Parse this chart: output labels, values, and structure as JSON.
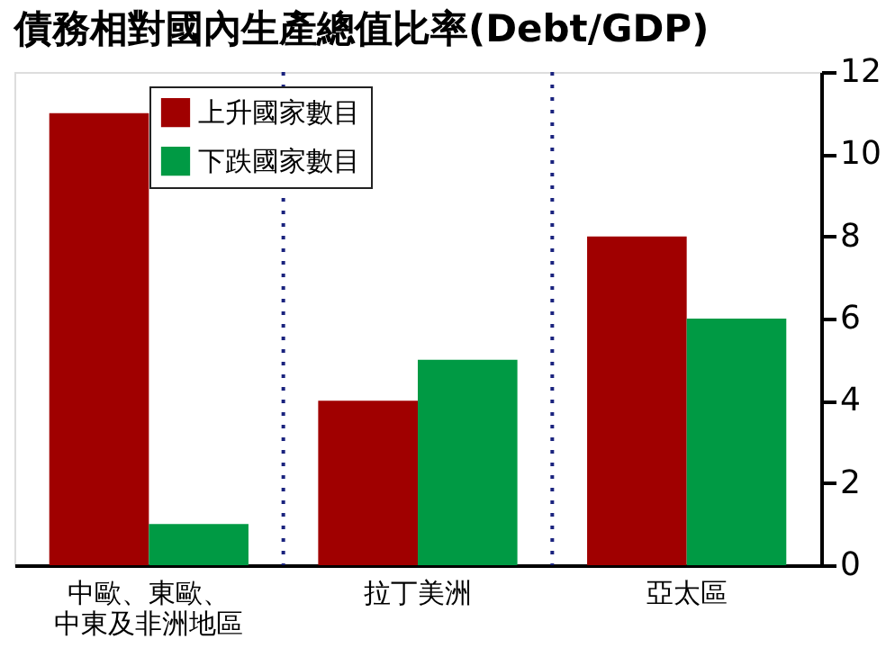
{
  "chart_data": {
    "type": "bar",
    "title": "債務相對國內生產總值比率(Debt/GDP)",
    "categories": [
      "中歐、東歐、中東及非洲地區",
      "拉丁美洲",
      "亞太區"
    ],
    "series": [
      {
        "name": "上升國家數目",
        "color": "#a00000",
        "values": [
          11,
          4,
          8
        ]
      },
      {
        "name": "下跌國家數目",
        "color": "#009a44",
        "values": [
          1,
          5,
          6
        ]
      }
    ],
    "ylim": [
      0,
      12
    ],
    "yticks": [
      0,
      2,
      4,
      6,
      8,
      10,
      12
    ],
    "legend": "top left"
  }
}
